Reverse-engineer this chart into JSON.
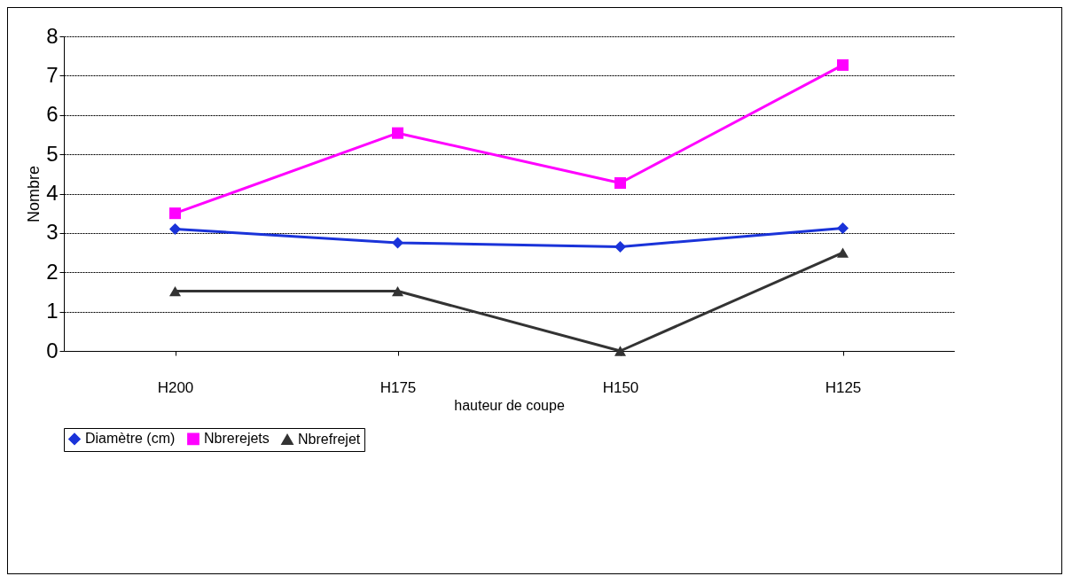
{
  "chart_data": {
    "type": "line",
    "xlabel": "hauteur de coupe",
    "ylabel": "Nombre",
    "categories": [
      "H200",
      "H175",
      "H150",
      "H125"
    ],
    "series": [
      {
        "name": "Diamètre (cm)",
        "color": "#1a33d9",
        "marker": "diamond",
        "values": [
          3.1,
          2.75,
          2.65,
          3.12
        ]
      },
      {
        "name": "Nbrerejets",
        "color": "#ff00ff",
        "marker": "square",
        "values": [
          3.5,
          5.54,
          4.27,
          7.27
        ]
      },
      {
        "name": "Nbrefrejet",
        "color": "#333333",
        "marker": "triangle",
        "values": [
          1.52,
          1.52,
          0,
          2.5
        ]
      }
    ],
    "ylim": [
      0,
      8
    ],
    "yticks": [
      0,
      1,
      2,
      3,
      4,
      5,
      6,
      7,
      8
    ],
    "grid": "y",
    "legend": "bottom",
    "line_style": "solid"
  }
}
